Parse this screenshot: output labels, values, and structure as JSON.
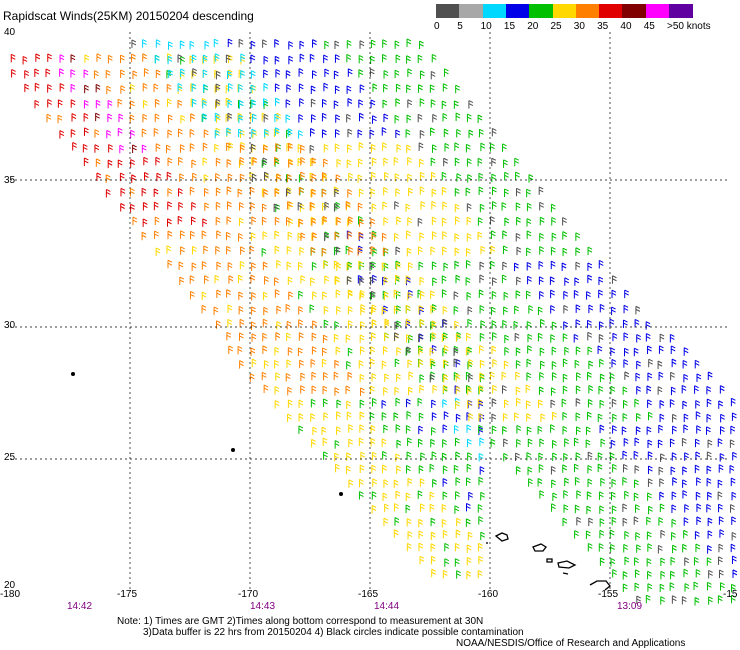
{
  "title": "Rapidscat Winds(25KM) 20150204 descending",
  "scale": {
    "items": [
      {
        "label": "0",
        "color": "#505050"
      },
      {
        "label": "5",
        "color": "#a8a8a8"
      },
      {
        "label": "10",
        "color": "#00d8ff"
      },
      {
        "label": "15",
        "color": "#0000e8"
      },
      {
        "label": "20",
        "color": "#00c000"
      },
      {
        "label": "25",
        "color": "#ffd800"
      },
      {
        "label": "30",
        "color": "#ff8000"
      },
      {
        "label": "35",
        "color": "#e00000"
      },
      {
        "label": "40",
        "color": "#800000"
      },
      {
        "label": "45",
        "color": "#ff00ff"
      },
      {
        "label": ">50 knots",
        "color": "#6000a0"
      }
    ]
  },
  "axes": {
    "lat_labels": [
      "40",
      "35",
      "30",
      "25",
      "20"
    ],
    "lon_labels": [
      "-180",
      "-175",
      "-170",
      "-165",
      "-160",
      "-155",
      "-15"
    ]
  },
  "times": [
    "14:42",
    "14:43",
    "14:44",
    "13:09"
  ],
  "notes": {
    "line1": "Note: 1) Times are GMT 2)Times along bottom correspond to measurement at 30N",
    "line2": "3)Data buffer is 22 hrs from 20150204 4) Black circles indicate possible contamination",
    "credit": "NOAA/NESDIS/Office of Research and Applications"
  },
  "chart_data": {
    "type": "wind-barb-map",
    "lat_range": [
      20,
      40
    ],
    "lon_range": [
      -180,
      -150
    ],
    "grid": true,
    "swaths": [
      {
        "time": "14:42",
        "region": "western",
        "dominant_speed_knots": "15-40, up to 45 near 35N"
      },
      {
        "time": "13:09",
        "region": "eastern",
        "dominant_speed_knots": "5-35"
      }
    ],
    "features": [
      "Hawaiian Islands outline near 20N -157"
    ]
  }
}
